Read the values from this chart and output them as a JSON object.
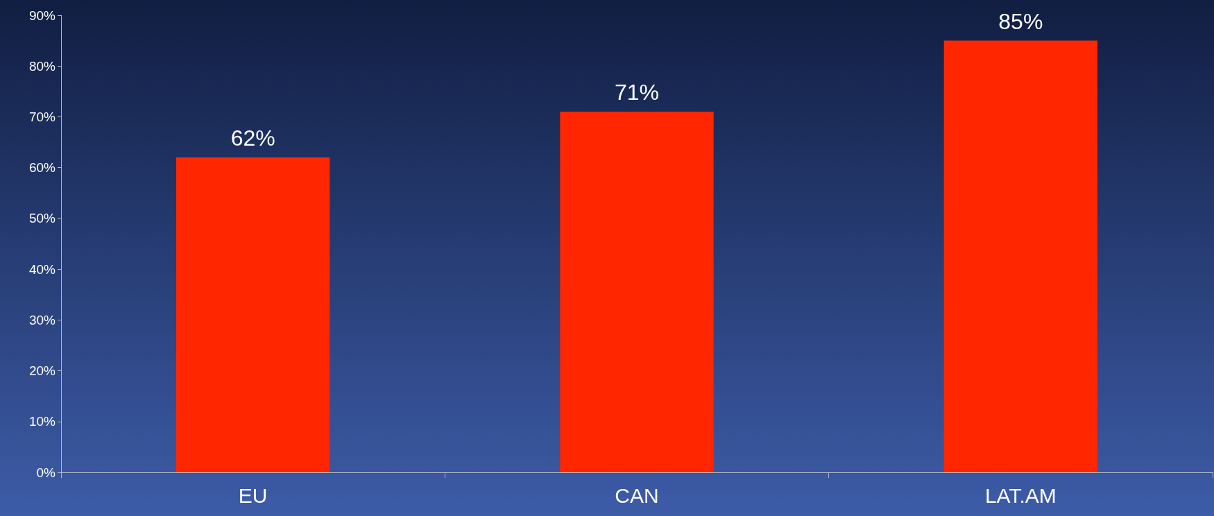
{
  "chart_data": {
    "type": "bar",
    "categories": [
      "EU",
      "CAN",
      "LAT.AM"
    ],
    "series": [
      {
        "color": "#ff2600",
        "values": [
          62,
          71,
          85
        ],
        "value_labels": [
          "62%",
          "71%",
          "85%"
        ]
      }
    ],
    "ylim": [
      0,
      90
    ],
    "yticks": [
      {
        "value": 0,
        "label": "0%"
      },
      {
        "value": 10,
        "label": "10%"
      },
      {
        "value": 20,
        "label": "20%"
      },
      {
        "value": 30,
        "label": "30%"
      },
      {
        "value": 40,
        "label": "40%"
      },
      {
        "value": 50,
        "label": "50%"
      },
      {
        "value": 60,
        "label": "60%"
      },
      {
        "value": 70,
        "label": "70%"
      },
      {
        "value": 80,
        "label": "80%"
      },
      {
        "value": 90,
        "label": "90%"
      }
    ],
    "grid": false
  }
}
